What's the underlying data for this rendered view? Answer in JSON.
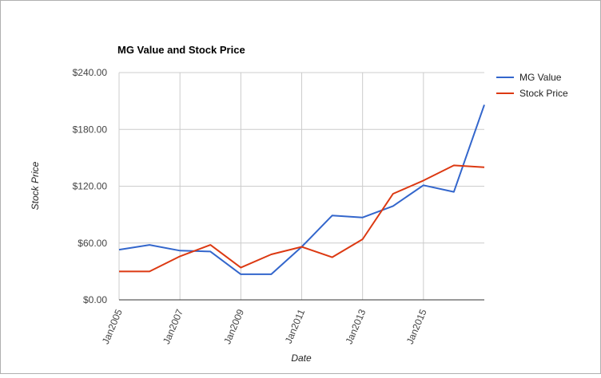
{
  "chart_data": {
    "type": "line",
    "title": "MG Value and Stock Price",
    "xlabel": "Date",
    "ylabel": "Stock Price",
    "x": [
      "Jan2005",
      "Jan2006",
      "Jan2007",
      "Jan2008",
      "Jan2009",
      "Jan2010",
      "Jan2011",
      "Jan2012",
      "Jan2013",
      "Jan2014",
      "Jan2015",
      "Jan2016",
      "Jan2017"
    ],
    "x_tick_labels": [
      "Jan2005",
      "Jan2007",
      "Jan2009",
      "Jan2011",
      "Jan2013",
      "Jan2015"
    ],
    "y_ticks": [
      0,
      60,
      120,
      180,
      240
    ],
    "y_tick_labels": [
      "$0.00",
      "$60.00",
      "$120.00",
      "$180.00",
      "$240.00"
    ],
    "ylim": [
      0,
      240
    ],
    "grid": true,
    "legend_position": "right",
    "series": [
      {
        "name": "MG Value",
        "color": "#3366cc",
        "values": [
          53,
          58,
          52,
          51,
          27,
          27,
          56,
          89,
          87,
          99,
          121,
          114,
          206
        ]
      },
      {
        "name": "Stock Price",
        "color": "#dc3912",
        "values": [
          30,
          30,
          46,
          58,
          34,
          48,
          56,
          45,
          64,
          112,
          126,
          142,
          140
        ]
      }
    ]
  }
}
